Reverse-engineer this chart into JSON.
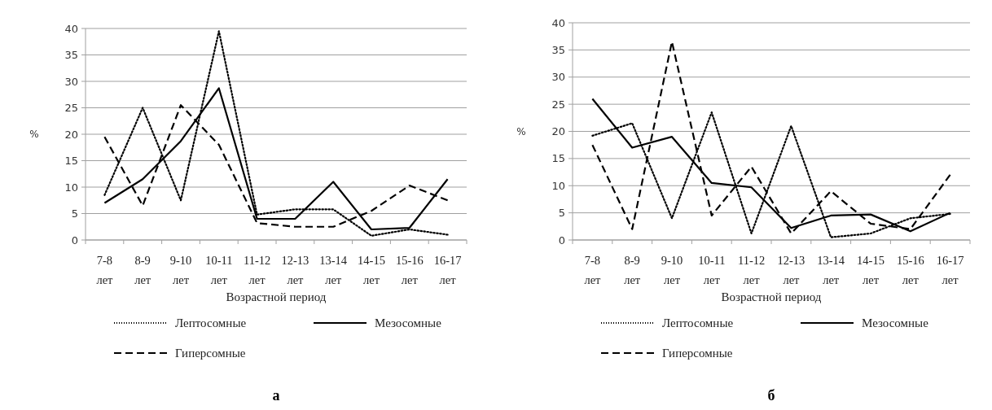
{
  "chart_data": [
    {
      "type": "line",
      "ylabel": "%",
      "xlabel": "Возрастной период",
      "categories": [
        "7-8 лет",
        "8-9 лет",
        "9-10 лет",
        "10-11 лет",
        "11-12 лет",
        "12-13 лет",
        "13-14 лет",
        "14-15 лет",
        "15-16 лет",
        "16-17 лет"
      ],
      "ylim": [
        0,
        40
      ],
      "yticks": [
        0,
        5,
        10,
        15,
        20,
        25,
        30,
        35,
        40
      ],
      "grid": "y",
      "legend": "bottom",
      "annotations": [
        "а"
      ],
      "series": [
        {
          "name": "Лептосомные",
          "color": "#000000",
          "line_style": "dotted",
          "values": [
            8.5,
            25,
            7.5,
            39.5,
            4.8,
            5.8,
            5.8,
            0.8,
            2,
            1
          ]
        },
        {
          "name": "Мезосомные",
          "color": "#000000",
          "line_style": "solid",
          "values": [
            7,
            11.5,
            18.7,
            28.7,
            4,
            4,
            11,
            2,
            2.3,
            11.5
          ]
        },
        {
          "name": "Гиперсомные",
          "color": "#000000",
          "line_style": "dashed",
          "values": [
            19.5,
            6.5,
            25.5,
            18,
            3.2,
            2.5,
            2.5,
            5.5,
            10.3,
            7.5
          ]
        }
      ]
    },
    {
      "type": "line",
      "ylabel": "%",
      "xlabel": "Возрастной период",
      "categories": [
        "7-8 лет",
        "8-9 лет",
        "9-10 лет",
        "10-11 лет",
        "11-12 лет",
        "12-13 лет",
        "13-14 лет",
        "14-15 лет",
        "15-16 лет",
        "16-17 лет"
      ],
      "ylim": [
        0,
        40
      ],
      "yticks": [
        0,
        5,
        10,
        15,
        20,
        25,
        30,
        35,
        40
      ],
      "grid": "y",
      "legend": "bottom",
      "annotations": [
        "б"
      ],
      "series": [
        {
          "name": "Лептосомные",
          "color": "#000000",
          "line_style": "dotted",
          "values": [
            19.2,
            21.5,
            4,
            23.5,
            1.2,
            21,
            0.5,
            1.2,
            4,
            4.8
          ]
        },
        {
          "name": "Мезосомные",
          "color": "#000000",
          "line_style": "solid",
          "values": [
            26,
            17,
            19,
            10.5,
            9.7,
            2.2,
            4.5,
            4.7,
            1.6,
            5
          ]
        },
        {
          "name": "Гиперсомные",
          "color": "#000000",
          "line_style": "dashed",
          "values": [
            17.5,
            2,
            36.5,
            4.5,
            13.5,
            1.2,
            9,
            3,
            2,
            12
          ]
        }
      ]
    }
  ]
}
